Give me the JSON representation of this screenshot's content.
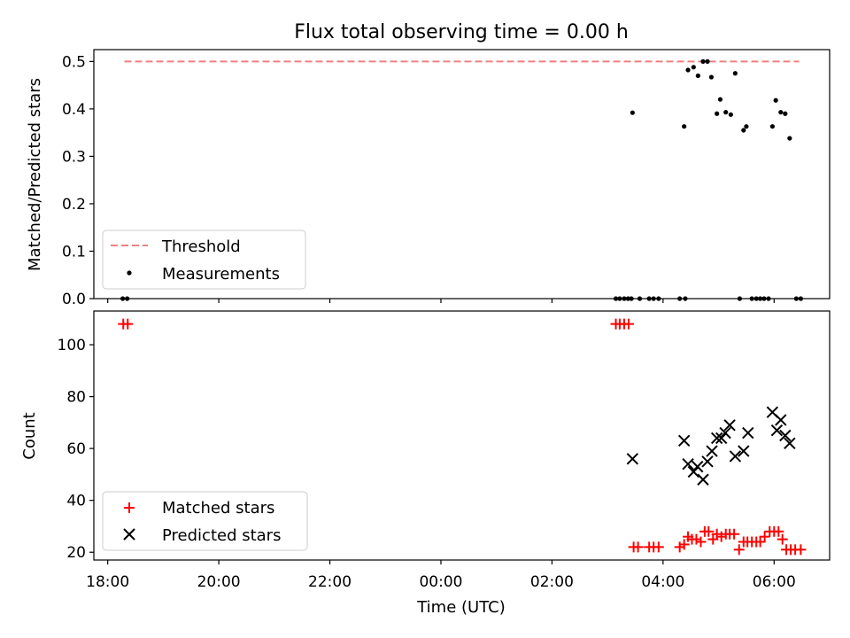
{
  "chart_data": [
    {
      "type": "scatter",
      "title": "Flux total observing time = 0.00 h",
      "xlabel": "",
      "ylabel": "Matched/Predicted stars",
      "x_unit": "hours_since_18:00_UTC",
      "xlim": [
        -0.25,
        13.0
      ],
      "ylim": [
        0.0,
        0.525
      ],
      "yticks": [
        0.0,
        0.1,
        0.2,
        0.3,
        0.4,
        0.5
      ],
      "ytick_labels": [
        "0.0",
        "0.1",
        "0.2",
        "0.3",
        "0.4",
        "0.5"
      ],
      "legend": {
        "placement": "lower-left",
        "entries": [
          {
            "label": "Threshold",
            "marker": "dashed-line",
            "color": "#f08080"
          },
          {
            "label": "Measurements",
            "marker": "dot",
            "color": "#000000"
          }
        ]
      },
      "threshold": {
        "name": "Threshold",
        "y": 0.5,
        "x_start": 0.3,
        "x_end": 12.45,
        "color": "#f08080"
      },
      "series": [
        {
          "name": "Measurements",
          "color": "#000000",
          "marker": "dot",
          "x": [
            0.27,
            0.35,
            9.15,
            9.22,
            9.3,
            9.37,
            9.43,
            9.58,
            9.75,
            9.83,
            9.92,
            10.3,
            10.4,
            10.45,
            10.55,
            10.63,
            10.72,
            10.8,
            10.87,
            10.97,
            11.03,
            11.13,
            11.22,
            11.3,
            11.38,
            11.45,
            11.5,
            11.6,
            11.68,
            11.75,
            11.82,
            11.9,
            11.97,
            12.03,
            12.12,
            12.2,
            12.28,
            12.4,
            12.48,
            9.45,
            10.38
          ],
          "y": [
            0.0,
            0.0,
            0.0,
            0.0,
            0.0,
            0.0,
            0.0,
            0.0,
            0.0,
            0.0,
            0.0,
            0.0,
            0.0,
            0.482,
            0.488,
            0.47,
            0.5,
            0.5,
            0.467,
            0.39,
            0.42,
            0.393,
            0.388,
            0.475,
            0.0,
            0.355,
            0.363,
            0.0,
            0.0,
            0.0,
            0.0,
            0.0,
            0.363,
            0.418,
            0.393,
            0.39,
            0.338,
            0.0,
            0.0,
            0.392,
            0.363
          ]
        }
      ]
    },
    {
      "type": "scatter",
      "title": "",
      "xlabel": "Time (UTC)",
      "ylabel": "Count",
      "x_unit": "hours_since_18:00_UTC",
      "xlim": [
        -0.25,
        13.0
      ],
      "ylim": [
        17,
        113
      ],
      "xticks": [
        0,
        2,
        4,
        6,
        8,
        10,
        12
      ],
      "xtick_labels": [
        "18:00",
        "20:00",
        "22:00",
        "00:00",
        "02:00",
        "04:00",
        "06:00"
      ],
      "yticks": [
        20,
        40,
        60,
        80,
        100
      ],
      "ytick_labels": [
        "20",
        "40",
        "60",
        "80",
        "100"
      ],
      "legend": {
        "placement": "lower-left",
        "entries": [
          {
            "label": "Matched stars",
            "marker": "plus",
            "color": "#ff0000"
          },
          {
            "label": "Predicted stars",
            "marker": "x",
            "color": "#000000"
          }
        ]
      },
      "series": [
        {
          "name": "Matched stars",
          "color": "#ff0000",
          "marker": "plus",
          "x": [
            0.28,
            0.36,
            9.15,
            9.22,
            9.3,
            9.38,
            9.47,
            9.55,
            9.75,
            9.83,
            9.92,
            10.3,
            10.38,
            10.45,
            10.52,
            10.6,
            10.68,
            10.75,
            10.82,
            10.9,
            10.97,
            11.05,
            11.13,
            11.2,
            11.28,
            11.37,
            11.45,
            11.52,
            11.6,
            11.68,
            11.75,
            11.83,
            11.92,
            12.0,
            12.08,
            12.15,
            12.22,
            12.3,
            12.38,
            12.48
          ],
          "y": [
            108,
            108,
            108,
            108,
            108,
            108,
            22,
            22,
            22,
            22,
            22,
            22,
            23,
            26,
            25,
            25,
            24,
            28,
            28,
            25,
            27,
            26,
            27,
            27,
            27,
            21,
            24,
            24,
            24,
            24,
            24,
            26,
            28,
            28,
            28,
            25,
            21,
            21,
            21,
            21
          ]
        },
        {
          "name": "Predicted stars",
          "color": "#000000",
          "marker": "x",
          "x": [
            9.45,
            10.38,
            10.45,
            10.55,
            10.62,
            10.72,
            10.8,
            10.88,
            10.97,
            11.05,
            11.12,
            11.2,
            11.3,
            11.45,
            11.53,
            11.97,
            12.05,
            12.12,
            12.2,
            12.28
          ],
          "y": [
            56,
            63,
            54,
            51,
            53,
            48,
            55,
            59,
            64,
            64,
            66,
            69,
            57,
            59,
            66,
            74,
            67,
            71,
            65,
            62
          ]
        }
      ]
    }
  ]
}
